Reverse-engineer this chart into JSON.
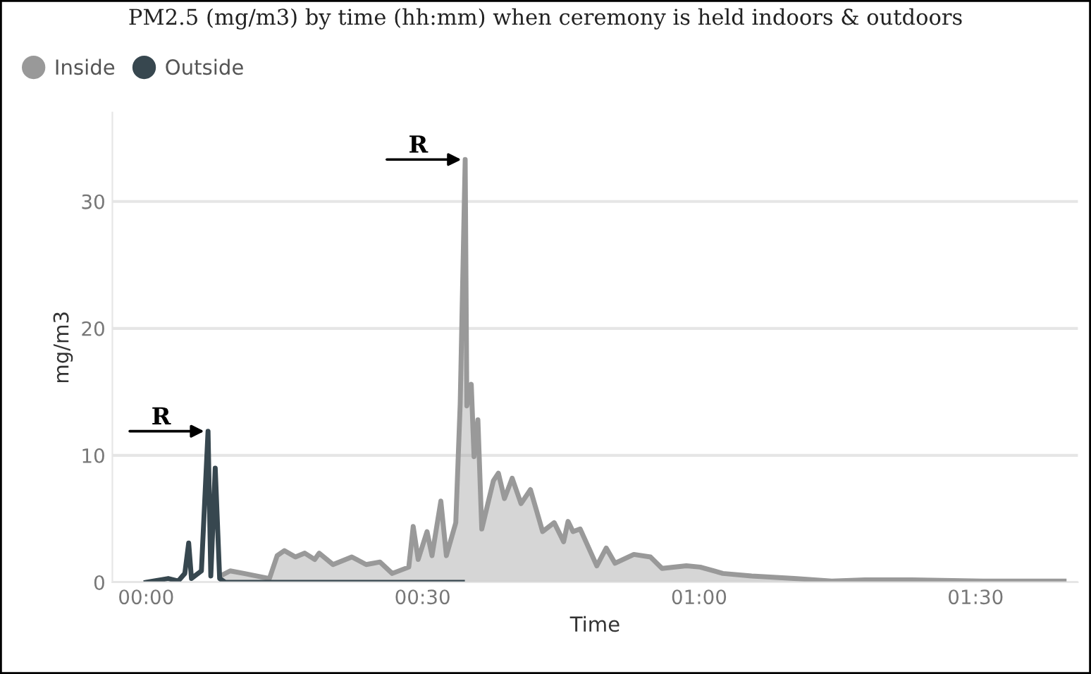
{
  "chart_data": {
    "type": "area",
    "title": "PM2.5 (mg/m3) by time (hh:mm) when ceremony is held indoors & outdoors",
    "xlabel": "Time",
    "ylabel": "mg/m3",
    "series": [
      {
        "name": "Inside",
        "color": "#999999",
        "x": [
          0.134,
          0.152,
          0.177,
          0.223,
          0.237,
          0.25,
          0.27,
          0.287,
          0.305,
          0.313,
          0.338,
          0.372,
          0.398,
          0.423,
          0.445,
          0.475,
          0.483,
          0.492,
          0.508,
          0.517,
          0.533,
          0.543,
          0.56,
          0.568,
          0.577,
          0.58,
          0.588,
          0.593,
          0.6,
          0.607,
          0.618,
          0.628,
          0.637,
          0.648,
          0.662,
          0.678,
          0.695,
          0.717,
          0.738,
          0.755,
          0.763,
          0.772,
          0.785,
          0.815,
          0.832,
          0.848,
          0.882,
          0.912,
          0.933,
          0.977,
          1.002,
          1.043,
          1.095,
          1.172,
          1.24,
          1.3,
          1.385,
          1.513,
          1.66
        ],
        "values": [
          0.5,
          0.9,
          0.7,
          0.3,
          2.1,
          2.5,
          2.0,
          2.3,
          1.8,
          2.3,
          1.4,
          2.0,
          1.4,
          1.6,
          0.7,
          1.2,
          4.4,
          1.8,
          4.0,
          2.1,
          6.4,
          2.1,
          4.7,
          14.1,
          33.3,
          13.9,
          15.6,
          9.9,
          12.8,
          4.2,
          6.2,
          8.0,
          8.6,
          6.6,
          8.2,
          6.2,
          7.3,
          4.0,
          4.7,
          3.2,
          4.8,
          4.0,
          4.2,
          1.3,
          2.7,
          1.5,
          2.2,
          2.0,
          1.1,
          1.3,
          1.2,
          0.7,
          0.5,
          0.3,
          0.1,
          0.2,
          0.2,
          0.1,
          0.1
        ]
      },
      {
        "name": "Outside",
        "type": "line",
        "color": "#37474f",
        "x": [
          0,
          0.04,
          0.058,
          0.07,
          0.077,
          0.082,
          0.1,
          0.112,
          0.117,
          0.125,
          0.133,
          0.143,
          0.572
        ],
        "values": [
          0,
          0.3,
          0.1,
          0.7,
          3.1,
          0.3,
          0.9,
          11.9,
          0.5,
          9.0,
          0.3,
          0,
          0
        ]
      }
    ],
    "xlim": [
      -0.061,
      1.685
    ],
    "xticks": [
      {
        "value": 0,
        "label": "00:00"
      },
      {
        "value": 0.5,
        "label": "00:30"
      },
      {
        "value": 1,
        "label": "01:00"
      },
      {
        "value": 1.5,
        "label": "01:30"
      }
    ],
    "ylim": [
      0,
      37
    ],
    "yticks": [
      0,
      10,
      20,
      30
    ],
    "grid": "y",
    "legend": "top left",
    "annotations": [
      {
        "text": "R",
        "x": 0.112,
        "y": 11.9
      },
      {
        "text": "R",
        "x": 0.577,
        "y": 33.3
      }
    ]
  }
}
